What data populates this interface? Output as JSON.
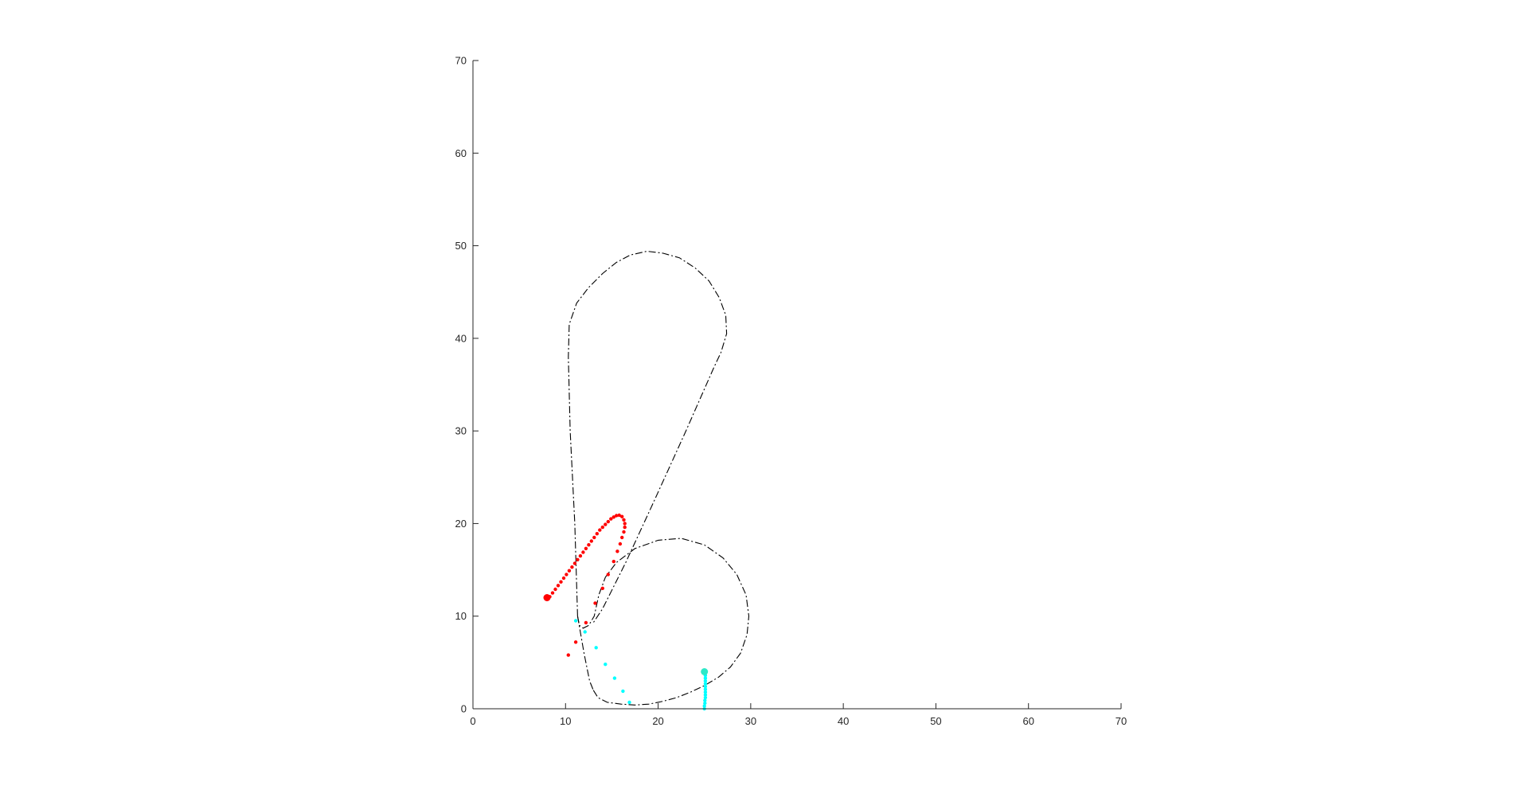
{
  "chart_data": {
    "type": "scatter",
    "title": "",
    "xlabel": "",
    "ylabel": "",
    "xlim": [
      0,
      70
    ],
    "ylim": [
      0,
      70
    ],
    "xticks": [
      "0",
      "10",
      "20",
      "30",
      "40",
      "50",
      "60",
      "70"
    ],
    "yticks": [
      "0",
      "10",
      "20",
      "30",
      "40",
      "50",
      "60",
      "70"
    ],
    "grid": false,
    "aspect": "equal",
    "boundary_paths": [
      {
        "style": "dash-dot",
        "color": "#000000",
        "points": [
          [
            13.0,
            2.0
          ],
          [
            13.5,
            1.2
          ],
          [
            14.5,
            0.7
          ],
          [
            16.0,
            0.5
          ],
          [
            17.5,
            0.4
          ],
          [
            19.0,
            0.5
          ],
          [
            20.5,
            0.8
          ],
          [
            22.0,
            1.2
          ],
          [
            23.5,
            1.8
          ],
          [
            25.0,
            2.5
          ],
          [
            26.5,
            3.4
          ],
          [
            27.8,
            4.5
          ],
          [
            28.9,
            6.0
          ],
          [
            29.6,
            8.0
          ],
          [
            29.8,
            10.0
          ],
          [
            29.5,
            12.3
          ],
          [
            28.5,
            14.5
          ],
          [
            27.0,
            16.3
          ],
          [
            25.0,
            17.7
          ],
          [
            22.5,
            18.4
          ],
          [
            20.0,
            18.2
          ],
          [
            17.5,
            17.3
          ],
          [
            15.5,
            15.8
          ],
          [
            14.3,
            14.2
          ],
          [
            13.6,
            12.3
          ],
          [
            13.1,
            10.0
          ],
          [
            12.5,
            9.0
          ],
          [
            11.9,
            8.7
          ],
          [
            11.5,
            9.0
          ],
          [
            11.3,
            10.0
          ]
        ]
      },
      {
        "style": "dash-dot",
        "color": "#000000",
        "points": [
          [
            11.3,
            10.0
          ],
          [
            11.0,
            20.0
          ],
          [
            10.5,
            30.0
          ],
          [
            10.3,
            38.0
          ],
          [
            10.4,
            41.5
          ],
          [
            11.2,
            43.8
          ],
          [
            12.5,
            45.5
          ],
          [
            14.0,
            47.0
          ],
          [
            15.5,
            48.2
          ],
          [
            17.0,
            49.0
          ],
          [
            18.8,
            49.4
          ],
          [
            20.5,
            49.2
          ],
          [
            22.3,
            48.7
          ],
          [
            24.0,
            47.6
          ],
          [
            25.5,
            46.2
          ],
          [
            26.6,
            44.4
          ],
          [
            27.3,
            42.5
          ],
          [
            27.4,
            40.5
          ],
          [
            26.8,
            38.5
          ],
          [
            26.0,
            36.8
          ],
          [
            23.0,
            30.0
          ],
          [
            19.5,
            22.3
          ],
          [
            16.5,
            15.8
          ],
          [
            14.0,
            10.8
          ],
          [
            13.0,
            9.3
          ]
        ]
      },
      {
        "style": "dash-dot",
        "color": "#000000",
        "points": [
          [
            11.3,
            10.0
          ],
          [
            12.0,
            6.0
          ],
          [
            12.6,
            3.0
          ],
          [
            13.0,
            2.0
          ]
        ]
      }
    ],
    "series": [
      {
        "color": "#ff0000",
        "marker_size": 2.2,
        "points": [
          [
            8.3,
            12.1
          ],
          [
            8.6,
            12.5
          ],
          [
            8.9,
            12.9
          ],
          [
            9.2,
            13.3
          ],
          [
            9.5,
            13.7
          ],
          [
            9.8,
            14.1
          ],
          [
            10.1,
            14.5
          ],
          [
            10.4,
            14.9
          ],
          [
            10.7,
            15.3
          ],
          [
            11.0,
            15.7
          ],
          [
            11.3,
            16.1
          ],
          [
            11.6,
            16.5
          ],
          [
            11.9,
            16.9
          ],
          [
            12.2,
            17.3
          ],
          [
            12.5,
            17.7
          ],
          [
            12.8,
            18.1
          ],
          [
            13.1,
            18.5
          ],
          [
            13.4,
            18.9
          ],
          [
            13.7,
            19.3
          ],
          [
            14.0,
            19.6
          ],
          [
            14.3,
            19.9
          ],
          [
            14.6,
            20.2
          ],
          [
            14.9,
            20.5
          ],
          [
            15.2,
            20.7
          ],
          [
            15.5,
            20.85
          ],
          [
            15.8,
            20.9
          ],
          [
            16.1,
            20.75
          ],
          [
            16.3,
            20.4
          ],
          [
            16.4,
            20.0
          ],
          [
            16.4,
            19.6
          ],
          [
            16.3,
            19.1
          ],
          [
            16.1,
            18.5
          ],
          [
            15.9,
            17.8
          ],
          [
            15.6,
            17.0
          ],
          [
            15.2,
            15.9
          ],
          [
            14.6,
            14.5
          ],
          [
            14.0,
            13.0
          ],
          [
            13.2,
            11.4
          ],
          [
            12.2,
            9.3
          ],
          [
            11.1,
            7.2
          ],
          [
            10.3,
            5.8
          ]
        ]
      },
      {
        "color": "#00ffff",
        "marker_size": 2.2,
        "points": [
          [
            25.0,
            0.0
          ],
          [
            25.0,
            0.3
          ],
          [
            25.05,
            0.6
          ],
          [
            25.05,
            0.9
          ],
          [
            25.1,
            1.2
          ],
          [
            25.1,
            1.5
          ],
          [
            25.1,
            1.8
          ],
          [
            25.1,
            2.1
          ],
          [
            25.1,
            2.4
          ],
          [
            25.1,
            2.7
          ],
          [
            25.1,
            3.0
          ],
          [
            25.1,
            3.3
          ],
          [
            25.1,
            3.6
          ],
          [
            16.9,
            0.7
          ],
          [
            16.2,
            1.9
          ],
          [
            15.3,
            3.3
          ],
          [
            14.3,
            4.8
          ],
          [
            13.3,
            6.6
          ],
          [
            12.1,
            8.3
          ],
          [
            11.1,
            9.5
          ]
        ]
      }
    ],
    "start_markers": [
      {
        "x": 8.0,
        "y": 12.0,
        "color": "#ff0000",
        "marker_size": 4.5
      },
      {
        "x": 25.0,
        "y": 4.0,
        "color": "#2ee8c8",
        "marker_size": 4.5
      }
    ]
  }
}
